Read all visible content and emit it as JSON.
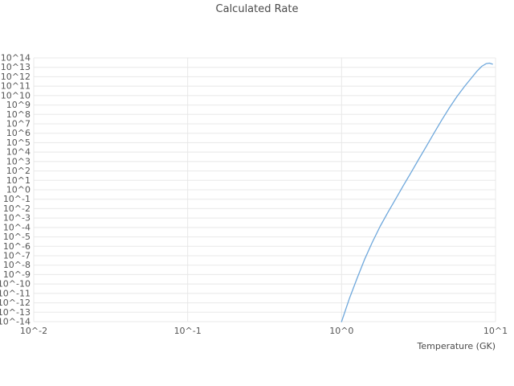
{
  "chart_data": {
    "type": "line",
    "title": "Calculated Rate",
    "xlabel": "Temperature (GK)",
    "ylabel": "",
    "x_scale": "log",
    "y_scale": "log",
    "xlim": [
      0.01,
      10
    ],
    "ylim": [
      1e-14,
      100000000000000.0
    ],
    "grid": true,
    "grid_color": "#e8e8e8",
    "line_color": "#6fa8dc",
    "background": "#ffffff",
    "legend": "none",
    "x_ticks": [
      {
        "value": 0.01,
        "label": "10^-2"
      },
      {
        "value": 0.1,
        "label": "10^-1"
      },
      {
        "value": 1,
        "label": "10^0"
      },
      {
        "value": 10,
        "label": "10^1"
      }
    ],
    "y_ticks": [
      {
        "value": 100000000000000.0,
        "label": "10^14"
      },
      {
        "value": 10000000000000.0,
        "label": "10^13"
      },
      {
        "value": 1000000000000.0,
        "label": "10^12"
      },
      {
        "value": 100000000000.0,
        "label": "10^11"
      },
      {
        "value": 10000000000.0,
        "label": "10^10"
      },
      {
        "value": 1000000000.0,
        "label": "10^9"
      },
      {
        "value": 100000000.0,
        "label": "10^8"
      },
      {
        "value": 10000000.0,
        "label": "10^7"
      },
      {
        "value": 1000000.0,
        "label": "10^6"
      },
      {
        "value": 100000.0,
        "label": "10^5"
      },
      {
        "value": 10000.0,
        "label": "10^4"
      },
      {
        "value": 1000.0,
        "label": "10^3"
      },
      {
        "value": 100.0,
        "label": "10^2"
      },
      {
        "value": 10.0,
        "label": "10^1"
      },
      {
        "value": 1.0,
        "label": "10^0"
      },
      {
        "value": 0.1,
        "label": "10^-1"
      },
      {
        "value": 0.01,
        "label": "10^-2"
      },
      {
        "value": 0.001,
        "label": "10^-3"
      },
      {
        "value": 0.0001,
        "label": "10^-4"
      },
      {
        "value": 1e-05,
        "label": "10^-5"
      },
      {
        "value": 1e-06,
        "label": "10^-6"
      },
      {
        "value": 1e-07,
        "label": "10^-7"
      },
      {
        "value": 1e-08,
        "label": "10^-8"
      },
      {
        "value": 1e-09,
        "label": "10^-9"
      },
      {
        "value": 1e-10,
        "label": "10^-10"
      },
      {
        "value": 1e-11,
        "label": "10^-11"
      },
      {
        "value": 1e-12,
        "label": "10^-12"
      },
      {
        "value": 1e-13,
        "label": "10^-13"
      },
      {
        "value": 1e-14,
        "label": "10^-14"
      }
    ],
    "series": [
      {
        "name": "Calculated Rate",
        "x": [
          1.0,
          1.12,
          1.26,
          1.41,
          1.58,
          1.78,
          2.0,
          2.24,
          2.51,
          2.82,
          3.16,
          3.55,
          3.98,
          4.47,
          5.01,
          5.62,
          6.31,
          7.08,
          7.59,
          8.13,
          8.71,
          9.12,
          9.55
        ],
        "y": [
          1e-14,
          2.5e-12,
          4e-10,
          4e-08,
          2.5e-06,
          0.00013,
          0.004,
          0.1,
          2.5,
          63,
          1600,
          40000,
          1000000.0,
          25000000.0,
          500000000.0,
          8000000000.0,
          100000000000.0,
          1000000000000.0,
          4000000000000.0,
          12600000000000.0,
          25000000000000.0,
          28000000000000.0,
          22000000000000.0
        ]
      }
    ]
  }
}
